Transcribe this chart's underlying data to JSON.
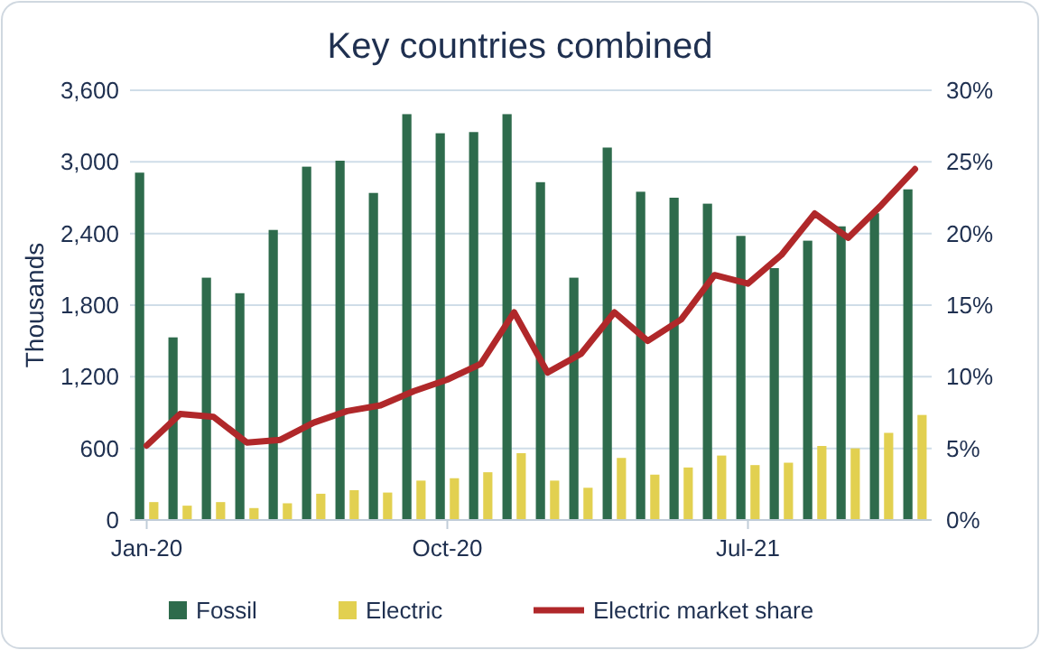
{
  "chart_data": {
    "type": "bar",
    "title": "Key countries combined",
    "ylabel": "Thousands",
    "categories": [
      "Jan-20",
      null,
      null,
      null,
      null,
      null,
      null,
      null,
      null,
      "Oct-20",
      null,
      null,
      null,
      null,
      null,
      null,
      null,
      null,
      "Jul-21",
      null,
      null,
      null,
      null,
      null
    ],
    "series": [
      {
        "name": "Fossil",
        "color": "#2e6b4c",
        "values": [
          2910,
          1530,
          2030,
          1900,
          2430,
          2960,
          3010,
          2740,
          3400,
          3240,
          3250,
          3400,
          2830,
          2030,
          3120,
          2750,
          2700,
          2650,
          2380,
          2110,
          2340,
          2460,
          2570,
          2770
        ]
      },
      {
        "name": "Electric",
        "color": "#e2d050",
        "values": [
          150,
          120,
          150,
          100,
          140,
          220,
          250,
          230,
          330,
          350,
          400,
          560,
          330,
          270,
          520,
          380,
          440,
          540,
          460,
          480,
          620,
          600,
          730,
          880
        ]
      },
      {
        "name": "Electric market share",
        "type": "line",
        "axis": "y2",
        "color": "#b0282a",
        "values": [
          5.2,
          7.4,
          7.2,
          5.4,
          5.6,
          6.8,
          7.6,
          8.0,
          9.0,
          9.8,
          10.9,
          14.5,
          10.3,
          11.6,
          14.5,
          12.5,
          14.0,
          17.1,
          16.5,
          18.5,
          21.4,
          19.7,
          22.0,
          24.5
        ]
      }
    ],
    "ylim": [
      0,
      3600
    ],
    "yticks": [
      0,
      {
        "value": 600,
        "label": "600"
      },
      {
        "value": 1200,
        "label": "1,200"
      },
      {
        "value": 1800,
        "label": "1,800"
      },
      {
        "value": 2400,
        "label": "2,400"
      },
      {
        "value": 3000,
        "label": "3,000"
      },
      {
        "value": 3600,
        "label": "3,600"
      }
    ],
    "y2lim": [
      0,
      30
    ],
    "y2ticks": [
      {
        "value": 0,
        "label": "0%"
      },
      {
        "value": 5,
        "label": "5%"
      },
      {
        "value": 10,
        "label": "10%"
      },
      {
        "value": 15,
        "label": "15%"
      },
      {
        "value": 20,
        "label": "20%"
      },
      {
        "value": 25,
        "label": "25%"
      },
      {
        "value": 30,
        "label": "30%"
      }
    ],
    "grid": "y",
    "legend": "bottom"
  }
}
